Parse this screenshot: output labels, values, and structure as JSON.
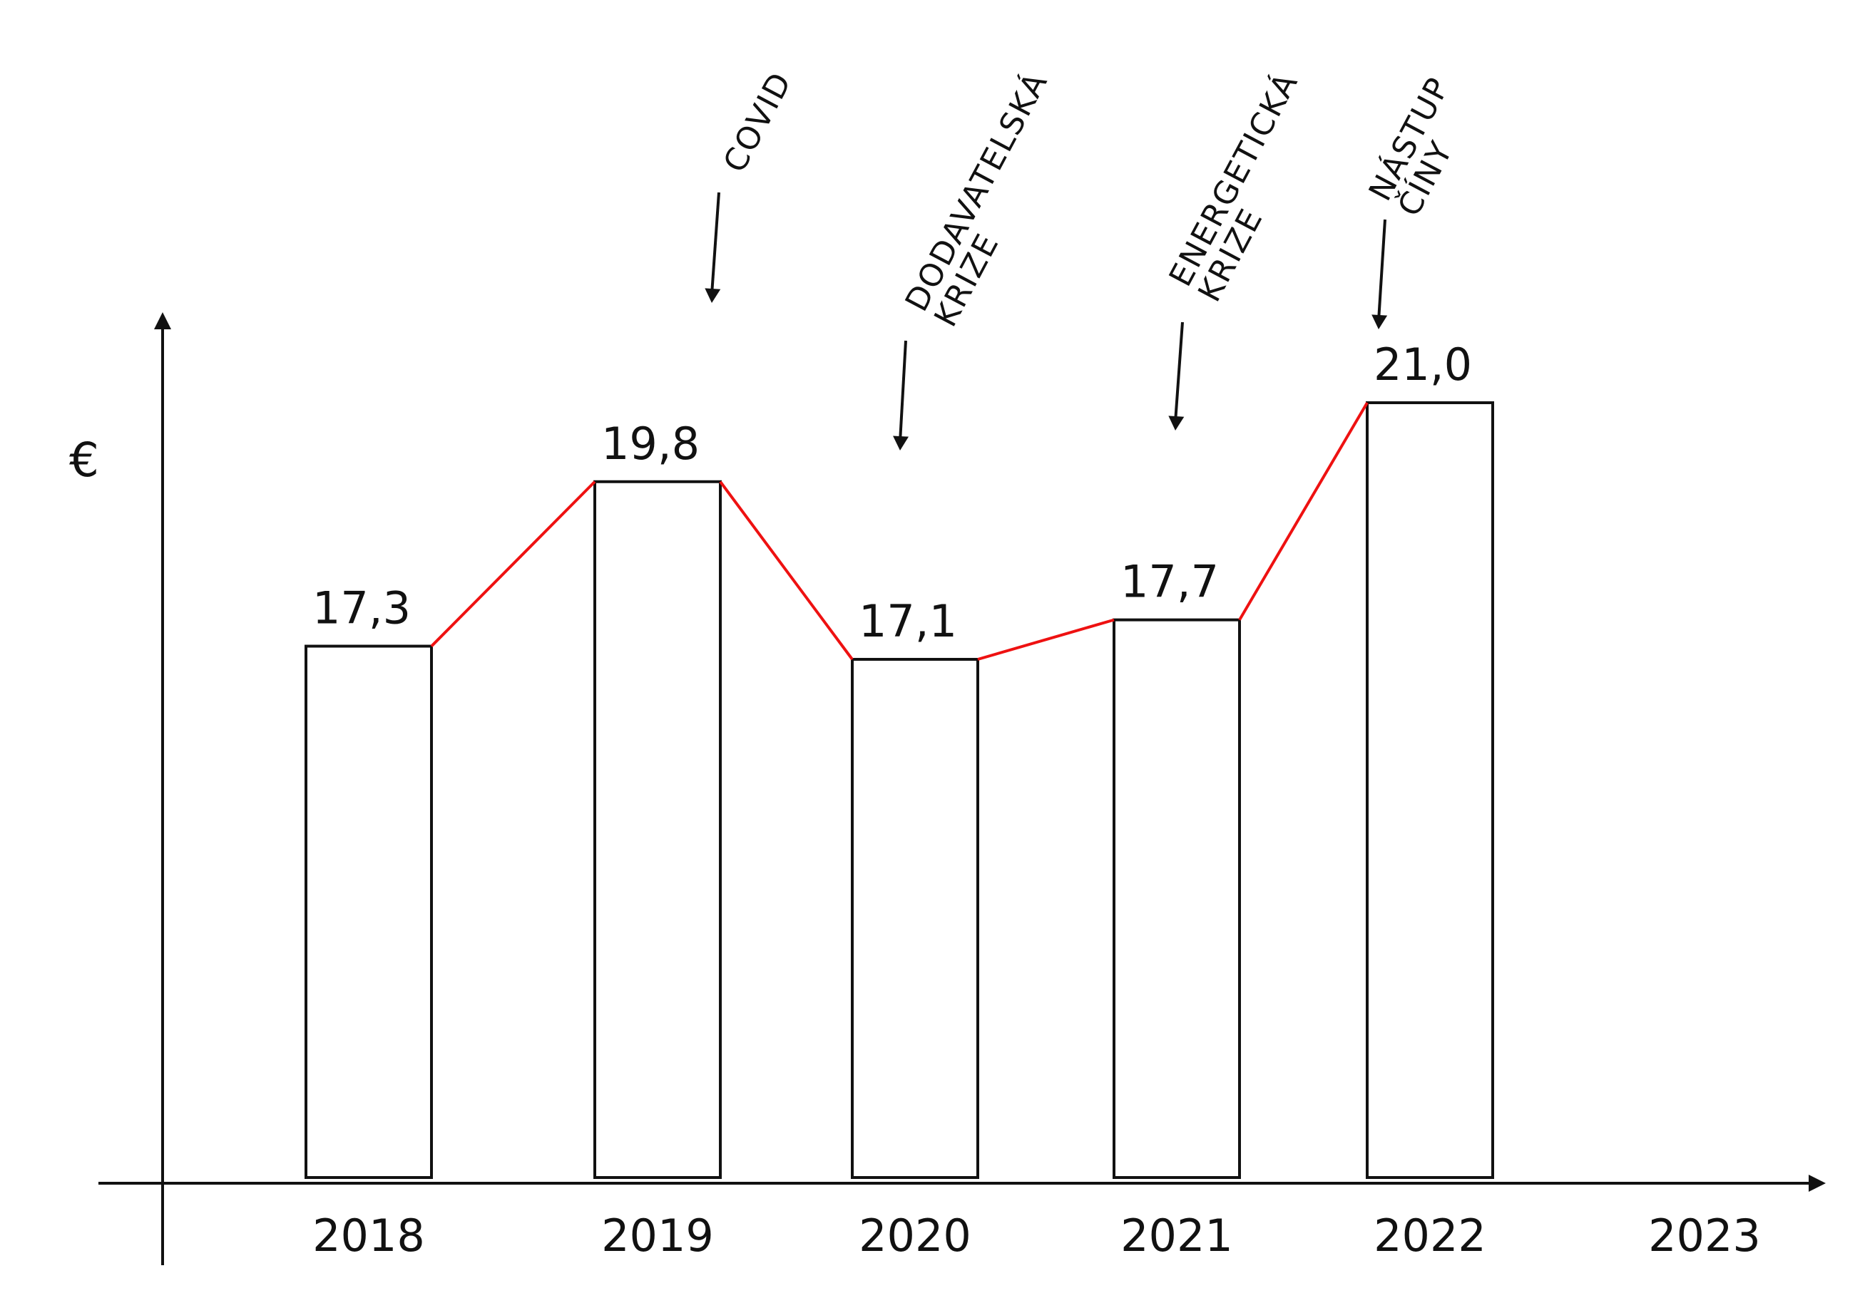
{
  "chart_data": {
    "type": "bar",
    "categories": [
      "2018",
      "2019",
      "2020",
      "2021",
      "2022",
      "2023"
    ],
    "values": [
      17.3,
      19.8,
      17.1,
      17.7,
      21.0,
      null
    ],
    "value_labels": [
      "17,3",
      "19,8",
      "17,1",
      "17,7",
      "21,0",
      ""
    ],
    "ylabel": "€",
    "xlabel": "",
    "title": "",
    "trend_line": true,
    "grid": false,
    "legend": "none",
    "annotations": [
      {
        "category": "2019",
        "lines": [
          "COVID"
        ]
      },
      {
        "category": "2020",
        "lines": [
          "DODAVATELSKÁ",
          "KRIZE"
        ]
      },
      {
        "category": "2021",
        "lines": [
          "ENERGETICKÁ",
          "KRIZE"
        ]
      },
      {
        "category": "2022",
        "lines": [
          "NÁSTUP",
          "ČÍNY"
        ]
      }
    ]
  },
  "colors": {
    "bar_stroke": "#111111",
    "bar_fill": "#ffffff",
    "trend_line": "#ee1111",
    "axis": "#111111",
    "text": "#111111"
  }
}
